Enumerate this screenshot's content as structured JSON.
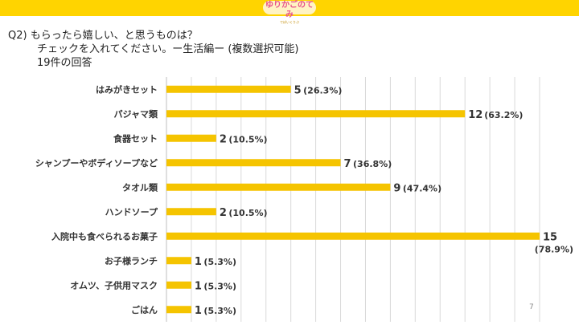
{
  "logo": {
    "text": "ゆりかごのてみ",
    "subtext": "でぽいくりぶ"
  },
  "question": {
    "line1": "Q2) もらったら嬉しい、と思うものは？",
    "line2": "チェックを入れてください。ー生活編ー (複数選択可能)",
    "line3": "19件の回答"
  },
  "chart_data": {
    "type": "bar",
    "orientation": "horizontal",
    "categories": [
      "はみがきセット",
      "パジャマ類",
      "食器セット",
      "シャンプーやボディソープなど",
      "タオル類",
      "ハンドソープ",
      "入院中も食べられるお菓子",
      "お子様ランチ",
      "オムツ、子供用マスク",
      "ごはん"
    ],
    "values": [
      5,
      12,
      2,
      7,
      9,
      2,
      15,
      1,
      1,
      1
    ],
    "value_labels": [
      "5",
      "12",
      "2",
      "7",
      "9",
      "2",
      "15",
      "1",
      "1",
      "1"
    ],
    "percent_labels": [
      "(26.3%)",
      "(63.2%)",
      "(10.5%)",
      "(36.8%)",
      "(47.4%)",
      "(10.5%)",
      "(78.9%)",
      "(5.3%)",
      "(5.3%)",
      "(5.3%)"
    ],
    "xlim": [
      0,
      15
    ],
    "grid": true,
    "bar_color": "#f5c400",
    "total_responses": 19
  },
  "page_number": "7"
}
